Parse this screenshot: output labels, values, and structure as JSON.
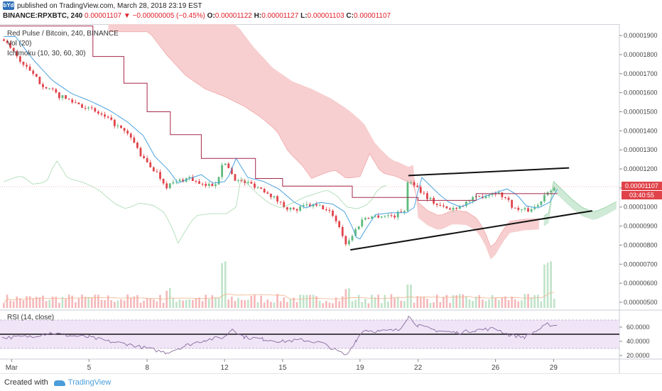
{
  "header": {
    "logo_text": "bYd",
    "published_text": "published on TradingView.com, March 28, 2018 23:19 EST",
    "symbol_tf": "BINANCE:RPXBTC, 240",
    "last": "0.00001107",
    "change": "▼ −0.00000005 (−0.45%)",
    "o_label": "O:",
    "o": "0.00001122",
    "h_label": "H:",
    "h": "0.00001127",
    "l_label": "L:",
    "l": "0.00001103",
    "c_label": "C:",
    "c": "0.00001107"
  },
  "legend": {
    "title": "Red Pulse / Bitcoin, 240, BINANCE",
    "vol": "Vol (20)",
    "ichimoku": "Ichimoku (10, 30, 60, 30)",
    "rsi": "RSI (14, close)"
  },
  "price_tags": {
    "last_price": "0.00001107",
    "countdown": "03:40:55"
  },
  "footer": {
    "created_with": "Created with",
    "brand": "TradingView"
  },
  "colors": {
    "up": "#5fba7d",
    "down": "#e0434a",
    "cloud_red": "#f7cfd0",
    "cloud_green": "#cfead6",
    "tenkan": "#4aa3df",
    "kijun": "#a5284a",
    "rsi_line": "#8a6a9e",
    "rsi_band": "#efe5f7"
  },
  "chart_data": {
    "type": "candlestick",
    "y_ticks": [
      "0.00001900",
      "0.00001800",
      "0.00001700",
      "0.00001600",
      "0.00001500",
      "0.00001400",
      "0.00001300",
      "0.00001200",
      "0.00001100",
      "0.00001000",
      "0.00000900",
      "0.00000800",
      "0.00000700",
      "0.00000600",
      "0.00000500"
    ],
    "x_ticks": [
      "Mar",
      "5",
      "8",
      "12",
      "15",
      "19",
      "22",
      "26",
      "29"
    ],
    "x_tick_days": [
      1,
      5,
      8,
      12,
      15,
      19,
      22,
      26,
      29
    ],
    "ylim": [
      4.7e-06,
      1.96e-05
    ],
    "xlim_days": [
      0.4,
      32.4
    ],
    "price_path": [
      [
        0.6,
        1880
      ],
      [
        1.5,
        1760
      ],
      [
        2.5,
        1650
      ],
      [
        3.5,
        1580
      ],
      [
        4.5,
        1540
      ],
      [
        5.5,
        1490
      ],
      [
        6.4,
        1430
      ],
      [
        7.2,
        1360
      ],
      [
        7.8,
        1250
      ],
      [
        8.5,
        1180
      ],
      [
        9.0,
        1110
      ],
      [
        9.6,
        1135
      ],
      [
        10.2,
        1155
      ],
      [
        10.8,
        1110
      ],
      [
        11.5,
        1120
      ],
      [
        12.0,
        1240
      ],
      [
        12.6,
        1140
      ],
      [
        13.4,
        1120
      ],
      [
        14.2,
        1080
      ],
      [
        15.0,
        1010
      ],
      [
        15.6,
        980
      ],
      [
        16.3,
        1010
      ],
      [
        17.0,
        1000
      ],
      [
        17.6,
        960
      ],
      [
        18.0,
        880
      ],
      [
        18.3,
        800
      ],
      [
        18.7,
        870
      ],
      [
        19.2,
        945
      ],
      [
        20.0,
        955
      ],
      [
        20.8,
        955
      ],
      [
        21.3,
        990
      ],
      [
        21.5,
        1150
      ],
      [
        21.9,
        1110
      ],
      [
        22.5,
        1050
      ],
      [
        23.0,
        1010
      ],
      [
        23.6,
        985
      ],
      [
        24.2,
        1010
      ],
      [
        24.8,
        1040
      ],
      [
        25.4,
        1060
      ],
      [
        26.0,
        1080
      ],
      [
        26.5,
        1050
      ],
      [
        27.0,
        990
      ],
      [
        27.6,
        980
      ],
      [
        28.2,
        1010
      ],
      [
        28.6,
        1080
      ],
      [
        28.9,
        1100
      ],
      [
        29.2,
        1107
      ]
    ],
    "kijun": [
      [
        0.4,
        1950
      ],
      [
        5.2,
        1950
      ],
      [
        5.2,
        1790
      ],
      [
        6.8,
        1790
      ],
      [
        6.8,
        1650
      ],
      [
        8.0,
        1650
      ],
      [
        8.0,
        1500
      ],
      [
        9.2,
        1500
      ],
      [
        9.2,
        1380
      ],
      [
        10.8,
        1380
      ],
      [
        10.8,
        1255
      ],
      [
        13.6,
        1255
      ],
      [
        13.6,
        1150
      ],
      [
        15.0,
        1150
      ],
      [
        15.0,
        1110
      ],
      [
        18.6,
        1110
      ],
      [
        18.6,
        1050
      ],
      [
        22.0,
        1050
      ],
      [
        22.0,
        1035
      ],
      [
        25.0,
        1035
      ],
      [
        25.0,
        1070
      ],
      [
        29.2,
        1070
      ]
    ],
    "rsi": {
      "yticks": [
        "60.0000",
        "40.0000",
        "20.0000"
      ],
      "ylim": [
        15,
        82
      ],
      "upper_band": 70,
      "lower_band": 30,
      "mid_line": 50,
      "path": [
        [
          0.5,
          45
        ],
        [
          2,
          47
        ],
        [
          3,
          52
        ],
        [
          4,
          48
        ],
        [
          5,
          46
        ],
        [
          6,
          40
        ],
        [
          7,
          36
        ],
        [
          8,
          30
        ],
        [
          9,
          24
        ],
        [
          10,
          34
        ],
        [
          11,
          42
        ],
        [
          12,
          46
        ],
        [
          12.4,
          58
        ],
        [
          13,
          46
        ],
        [
          14,
          43
        ],
        [
          15,
          40
        ],
        [
          16,
          42
        ],
        [
          17,
          38
        ],
        [
          17.7,
          28
        ],
        [
          18.3,
          20
        ],
        [
          18.8,
          42
        ],
        [
          19.2,
          56
        ],
        [
          20,
          54
        ],
        [
          21,
          56
        ],
        [
          21.5,
          75
        ],
        [
          22,
          62
        ],
        [
          23,
          55
        ],
        [
          24,
          52
        ],
        [
          25,
          56
        ],
        [
          26,
          58
        ],
        [
          26.7,
          49
        ],
        [
          27.5,
          46
        ],
        [
          28.2,
          56
        ],
        [
          28.7,
          64
        ],
        [
          29.2,
          62
        ]
      ]
    },
    "volume": {
      "ylim": [
        0,
        100
      ]
    }
  }
}
